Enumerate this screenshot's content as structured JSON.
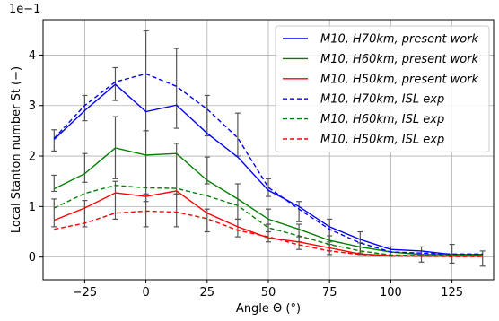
{
  "chart_data": {
    "type": "line",
    "xlabel": "Angle Θ (°)",
    "ylabel": "Local Stanton number St (−)",
    "scale_label": "1e−1",
    "xlim": [
      -42,
      142
    ],
    "ylim": [
      -0.45,
      4.7
    ],
    "xticks": [
      -25,
      0,
      25,
      50,
      75,
      100,
      125
    ],
    "yticks": [
      0,
      1,
      2,
      3,
      4
    ],
    "grid": true,
    "legend_position": "top-right",
    "colors": {
      "h70": "#0000ff",
      "h60": "#008000",
      "h50": "#ff0000",
      "errorbar": "#555555",
      "grid": "#b0b0b0"
    },
    "series": [
      {
        "name": "M10, H70km, present work",
        "group": "h70",
        "dashed": false,
        "x": [
          -37.5,
          -25,
          -12.5,
          0,
          12.5,
          25,
          37.5,
          50,
          62.5,
          75,
          87.5,
          100,
          112.5,
          125,
          137.5
        ],
        "y": [
          2.33,
          2.9,
          3.42,
          2.88,
          3.01,
          2.45,
          1.98,
          1.32,
          1.0,
          0.6,
          0.35,
          0.15,
          0.12,
          0.05,
          0.05
        ]
      },
      {
        "name": "M10, H60km, present work",
        "group": "h60",
        "dashed": false,
        "x": [
          -37.5,
          -25,
          -12.5,
          0,
          12.5,
          25,
          37.5,
          50,
          62.5,
          75,
          87.5,
          100,
          112.5,
          125,
          137.5
        ],
        "y": [
          1.35,
          1.65,
          2.16,
          2.02,
          2.05,
          1.52,
          1.15,
          0.75,
          0.55,
          0.33,
          0.2,
          0.1,
          0.05,
          0.05,
          0.04
        ]
      },
      {
        "name": "M10, H50km, present work",
        "group": "h50",
        "dashed": false,
        "x": [
          -37.5,
          -25,
          -12.5,
          0,
          12.5,
          25,
          37.5,
          50,
          62.5,
          75,
          87.5,
          100,
          112.5,
          125,
          137.5
        ],
        "y": [
          0.73,
          0.97,
          1.27,
          1.2,
          1.31,
          0.87,
          0.6,
          0.38,
          0.3,
          0.18,
          0.06,
          0.03,
          0.02,
          0.02,
          0.02
        ]
      },
      {
        "name": "M10, H70km, ISL exp",
        "group": "h70",
        "dashed": true,
        "x": [
          -37.5,
          -25,
          -12.5,
          0,
          12.5,
          25,
          37.5,
          50,
          62.5,
          75,
          87.5,
          100,
          112.5,
          125,
          137.5
        ],
        "y": [
          2.35,
          3.0,
          3.47,
          3.63,
          3.38,
          2.93,
          2.36,
          1.38,
          0.95,
          0.55,
          0.28,
          0.1,
          0.08,
          0.06,
          0.06
        ]
      },
      {
        "name": "M10, H60km, ISL exp",
        "group": "h60",
        "dashed": true,
        "x": [
          -37.5,
          -25,
          -12.5,
          0,
          12.5,
          25,
          37.5,
          50,
          62.5,
          75,
          87.5,
          100,
          112.5,
          125,
          137.5
        ],
        "y": [
          0.97,
          1.26,
          1.42,
          1.37,
          1.36,
          1.21,
          1.02,
          0.58,
          0.42,
          0.25,
          0.12,
          0.04,
          0.03,
          0.03,
          0.03
        ]
      },
      {
        "name": "M10, H50km, ISL exp",
        "group": "h50",
        "dashed": true,
        "x": [
          -37.5,
          -25,
          -12.5,
          0,
          12.5,
          25,
          37.5,
          50,
          62.5,
          75,
          87.5,
          100,
          112.5,
          125,
          137.5
        ],
        "y": [
          0.55,
          0.67,
          0.87,
          0.91,
          0.89,
          0.76,
          0.53,
          0.4,
          0.24,
          0.12,
          0.05,
          0.02,
          0.02,
          0.01,
          0.01
        ]
      }
    ],
    "error_bars": [
      {
        "x": -37.5,
        "low": 2.1,
        "high": 2.52
      },
      {
        "x": -37.5,
        "low": 1.3,
        "high": 1.62
      },
      {
        "x": -37.5,
        "low": 0.6,
        "high": 1.15
      },
      {
        "x": -25,
        "low": 2.7,
        "high": 3.2
      },
      {
        "x": -25,
        "low": 1.48,
        "high": 2.05
      },
      {
        "x": -25,
        "low": 0.6,
        "high": 1.12
      },
      {
        "x": -12.5,
        "low": 3.1,
        "high": 3.75
      },
      {
        "x": -12.5,
        "low": 1.55,
        "high": 2.78
      },
      {
        "x": -12.5,
        "low": 0.75,
        "high": 1.5
      },
      {
        "x": 0,
        "low": 2.5,
        "high": 4.48
      },
      {
        "x": 0,
        "low": 1.1,
        "high": 2.5
      },
      {
        "x": 0,
        "low": 0.6,
        "high": 1.25
      },
      {
        "x": 12.5,
        "low": 2.55,
        "high": 4.13
      },
      {
        "x": 12.5,
        "low": 1.25,
        "high": 2.25
      },
      {
        "x": 12.5,
        "low": 0.6,
        "high": 1.25
      },
      {
        "x": 25,
        "low": 2.4,
        "high": 3.2
      },
      {
        "x": 25,
        "low": 1.45,
        "high": 1.98
      },
      {
        "x": 25,
        "low": 0.5,
        "high": 0.95
      },
      {
        "x": 37.5,
        "low": 2.0,
        "high": 2.85
      },
      {
        "x": 37.5,
        "low": 0.75,
        "high": 1.45
      },
      {
        "x": 37.5,
        "low": 0.4,
        "high": 0.75
      },
      {
        "x": 50,
        "low": 1.2,
        "high": 1.55
      },
      {
        "x": 50,
        "low": 0.5,
        "high": 0.95
      },
      {
        "x": 50,
        "low": 0.3,
        "high": 0.65
      },
      {
        "x": 62.5,
        "low": 0.7,
        "high": 1.1
      },
      {
        "x": 62.5,
        "low": 0.3,
        "high": 0.65
      },
      {
        "x": 62.5,
        "low": 0.15,
        "high": 0.4
      },
      {
        "x": 75,
        "low": 0.3,
        "high": 0.75
      },
      {
        "x": 75,
        "low": 0.12,
        "high": 0.42
      },
      {
        "x": 75,
        "low": 0.05,
        "high": 0.25
      },
      {
        "x": 87.5,
        "low": 0.08,
        "high": 0.5
      },
      {
        "x": 87.5,
        "low": 0.05,
        "high": 0.28
      },
      {
        "x": 100,
        "low": 0.02,
        "high": 0.2
      },
      {
        "x": 112.5,
        "low": -0.1,
        "high": 0.2
      },
      {
        "x": 125,
        "low": -0.12,
        "high": 0.25
      },
      {
        "x": 137.5,
        "low": -0.18,
        "high": 0.12
      }
    ]
  }
}
